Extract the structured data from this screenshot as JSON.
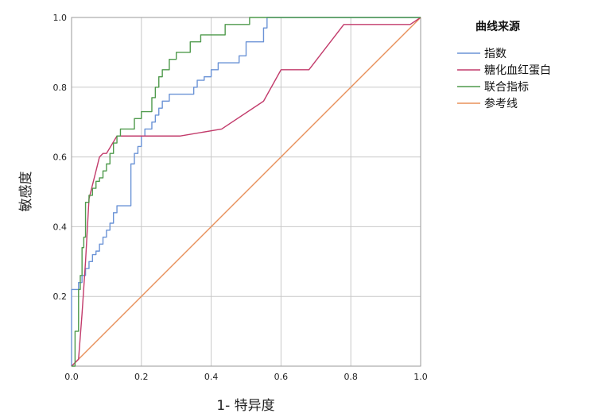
{
  "chart_data": {
    "type": "line",
    "xlabel": "1- 特异度",
    "ylabel": "敏感度",
    "xlim": [
      0,
      1
    ],
    "ylim": [
      0,
      1
    ],
    "x_ticks": [
      "0.0",
      "0.2",
      "0.4",
      "0.6",
      "0.8",
      "1.0"
    ],
    "y_ticks": [
      "0.2",
      "0.4",
      "0.6",
      "0.8",
      "1.0"
    ],
    "grid": true,
    "legend": {
      "title": "曲线来源",
      "position": "right"
    },
    "series": [
      {
        "name": "指数",
        "color": "#6b93d6",
        "x": [
          0,
          0,
          0.02,
          0.02,
          0.03,
          0.03,
          0.04,
          0.04,
          0.05,
          0.05,
          0.06,
          0.06,
          0.07,
          0.07,
          0.08,
          0.08,
          0.09,
          0.09,
          0.1,
          0.1,
          0.11,
          0.11,
          0.12,
          0.12,
          0.13,
          0.13,
          0.17,
          0.17,
          0.18,
          0.18,
          0.19,
          0.19,
          0.2,
          0.2,
          0.21,
          0.21,
          0.23,
          0.23,
          0.24,
          0.24,
          0.25,
          0.25,
          0.26,
          0.26,
          0.28,
          0.28,
          0.3,
          0.3,
          0.35,
          0.35,
          0.36,
          0.36,
          0.38,
          0.38,
          0.4,
          0.4,
          0.42,
          0.42,
          0.48,
          0.48,
          0.5,
          0.5,
          0.55,
          0.55,
          0.56,
          0.56,
          1.0
        ],
        "y": [
          0,
          0.22,
          0.22,
          0.24,
          0.24,
          0.26,
          0.26,
          0.28,
          0.28,
          0.3,
          0.3,
          0.32,
          0.32,
          0.33,
          0.33,
          0.35,
          0.35,
          0.37,
          0.37,
          0.39,
          0.39,
          0.41,
          0.41,
          0.44,
          0.44,
          0.46,
          0.46,
          0.58,
          0.58,
          0.61,
          0.61,
          0.63,
          0.63,
          0.66,
          0.66,
          0.68,
          0.68,
          0.7,
          0.7,
          0.72,
          0.72,
          0.74,
          0.74,
          0.76,
          0.76,
          0.78,
          0.78,
          0.78,
          0.78,
          0.8,
          0.8,
          0.82,
          0.82,
          0.83,
          0.83,
          0.85,
          0.85,
          0.87,
          0.87,
          0.89,
          0.89,
          0.93,
          0.93,
          0.97,
          0.97,
          1.0,
          1.0
        ]
      },
      {
        "name": "糖化血红蛋白",
        "color": "#c23b6b",
        "x": [
          0,
          0.02,
          0.03,
          0.04,
          0.05,
          0.06,
          0.07,
          0.08,
          0.09,
          0.1,
          0.13,
          0.31,
          0.43,
          0.55,
          0.6,
          0.68,
          0.78,
          0.97,
          1.0
        ],
        "y": [
          0,
          0.02,
          0.15,
          0.3,
          0.48,
          0.52,
          0.56,
          0.6,
          0.61,
          0.61,
          0.66,
          0.66,
          0.68,
          0.76,
          0.85,
          0.85,
          0.98,
          0.98,
          1.0
        ]
      },
      {
        "name": "联合指标",
        "color": "#4f9a4c",
        "x": [
          0,
          0.01,
          0.01,
          0.02,
          0.02,
          0.025,
          0.025,
          0.03,
          0.03,
          0.035,
          0.035,
          0.04,
          0.04,
          0.05,
          0.05,
          0.06,
          0.06,
          0.07,
          0.07,
          0.08,
          0.08,
          0.09,
          0.09,
          0.1,
          0.1,
          0.11,
          0.11,
          0.12,
          0.12,
          0.13,
          0.13,
          0.14,
          0.14,
          0.18,
          0.18,
          0.2,
          0.2,
          0.23,
          0.23,
          0.24,
          0.24,
          0.25,
          0.25,
          0.26,
          0.26,
          0.28,
          0.28,
          0.3,
          0.3,
          0.34,
          0.34,
          0.37,
          0.37,
          0.44,
          0.44,
          0.51,
          0.51,
          1.0
        ],
        "y": [
          0,
          0,
          0.1,
          0.1,
          0.22,
          0.22,
          0.26,
          0.26,
          0.34,
          0.34,
          0.37,
          0.37,
          0.47,
          0.47,
          0.49,
          0.49,
          0.51,
          0.51,
          0.53,
          0.53,
          0.54,
          0.54,
          0.56,
          0.56,
          0.58,
          0.58,
          0.61,
          0.61,
          0.64,
          0.64,
          0.66,
          0.66,
          0.68,
          0.68,
          0.71,
          0.71,
          0.73,
          0.73,
          0.77,
          0.77,
          0.8,
          0.8,
          0.83,
          0.83,
          0.85,
          0.85,
          0.88,
          0.88,
          0.9,
          0.9,
          0.93,
          0.93,
          0.95,
          0.95,
          0.98,
          0.98,
          1.0,
          1.0
        ]
      },
      {
        "name": "参考线",
        "color": "#e8905a",
        "x": [
          0,
          1
        ],
        "y": [
          0,
          1
        ]
      }
    ]
  }
}
